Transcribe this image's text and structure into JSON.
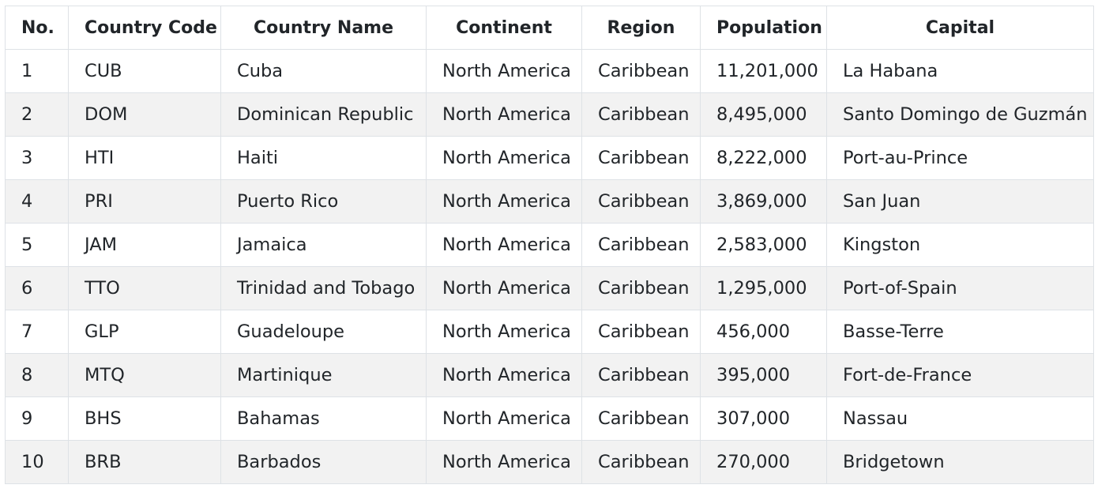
{
  "table": {
    "headers": [
      "No.",
      "Country Code",
      "Country Name",
      "Continent",
      "Region",
      "Population",
      "Capital"
    ],
    "rows": [
      [
        "1",
        "CUB",
        "Cuba",
        "North America",
        "Caribbean",
        "11,201,000",
        "La Habana"
      ],
      [
        "2",
        "DOM",
        "Dominican Republic",
        "North America",
        "Caribbean",
        "8,495,000",
        "Santo Domingo de Guzmán"
      ],
      [
        "3",
        "HTI",
        "Haiti",
        "North America",
        "Caribbean",
        "8,222,000",
        "Port-au-Prince"
      ],
      [
        "4",
        "PRI",
        "Puerto Rico",
        "North America",
        "Caribbean",
        "3,869,000",
        "San Juan"
      ],
      [
        "5",
        "JAM",
        "Jamaica",
        "North America",
        "Caribbean",
        "2,583,000",
        "Kingston"
      ],
      [
        "6",
        "TTO",
        "Trinidad and Tobago",
        "North America",
        "Caribbean",
        "1,295,000",
        "Port-of-Spain"
      ],
      [
        "7",
        "GLP",
        "Guadeloupe",
        "North America",
        "Caribbean",
        "456,000",
        "Basse-Terre"
      ],
      [
        "8",
        "MTQ",
        "Martinique",
        "North America",
        "Caribbean",
        "395,000",
        "Fort-de-France"
      ],
      [
        "9",
        "BHS",
        "Bahamas",
        "North America",
        "Caribbean",
        "307,000",
        "Nassau"
      ],
      [
        "10",
        "BRB",
        "Barbados",
        "North America",
        "Caribbean",
        "270,000",
        "Bridgetown"
      ]
    ]
  },
  "colors": {
    "border": "#dee2e6",
    "stripe": "#f2f2f2",
    "text": "#212529"
  }
}
